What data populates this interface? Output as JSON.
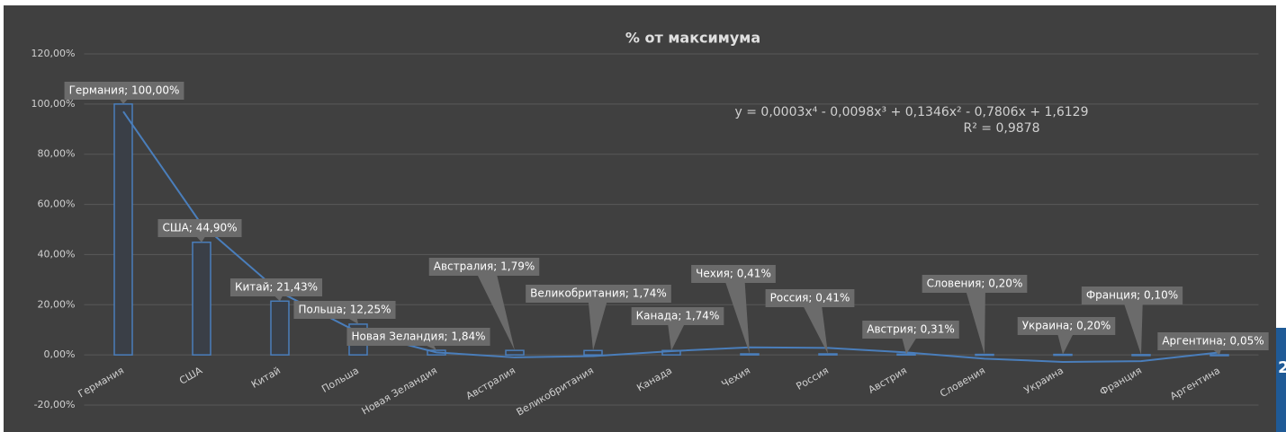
{
  "chart_data": {
    "type": "bar",
    "title": "% от максимума",
    "categories": [
      "Германия",
      "США",
      "Китай",
      "Польша",
      "Новая Зеландия",
      "Австралия",
      "Великобритания",
      "Канада",
      "Чехия",
      "Россия",
      "Австрия",
      "Словения",
      "Украина",
      "Франция",
      "Аргентина"
    ],
    "values": [
      100,
      44.9,
      21.43,
      12.25,
      1.84,
      1.79,
      1.74,
      1.74,
      0.41,
      0.41,
      0.31,
      0.2,
      0.2,
      0.1,
      0.05
    ],
    "value_labels": [
      "Германия; 100,00%",
      "США; 44,90%",
      "Китай; 21,43%",
      "Польша; 12,25%",
      "Новая Зеландия; 1,84%",
      "Австралия; 1,79%",
      "Великобритания; 1,74%",
      "Канада; 1,74%",
      "Чехия; 0,41%",
      "Россия; 0,41%",
      "Австрия; 0,31%",
      "Словения; 0,20%",
      "Украина; 0,20%",
      "Франция; 0,10%",
      "Аргентина; 0,05%"
    ],
    "color": "#4a7ebb",
    "ylim": [
      -20,
      120
    ],
    "yticks": [
      {
        "value": -20,
        "label": "-20,00%"
      },
      {
        "value": 0,
        "label": "0,00%"
      },
      {
        "value": 20,
        "label": "20,00%"
      },
      {
        "value": 40,
        "label": "40,00%"
      },
      {
        "value": 60,
        "label": "60,00%"
      },
      {
        "value": 80,
        "label": "80,00%"
      },
      {
        "value": 100,
        "label": "100,00%"
      },
      {
        "value": 120,
        "label": "120,00%"
      }
    ],
    "grid": true,
    "trendline": {
      "values": [
        97,
        52,
        25,
        9,
        1,
        -1,
        -0.5,
        1.5,
        3,
        2.8,
        1,
        -1.5,
        -2.8,
        -2.5,
        1
      ],
      "color": "#4a7ebb",
      "equation": "y = 0,0003x⁴ - 0,0098x³ + 0,1346x² - 0,7806x + 1,6129",
      "r_squared_label": "R² = 0,9878"
    }
  },
  "page_fragment": "2"
}
